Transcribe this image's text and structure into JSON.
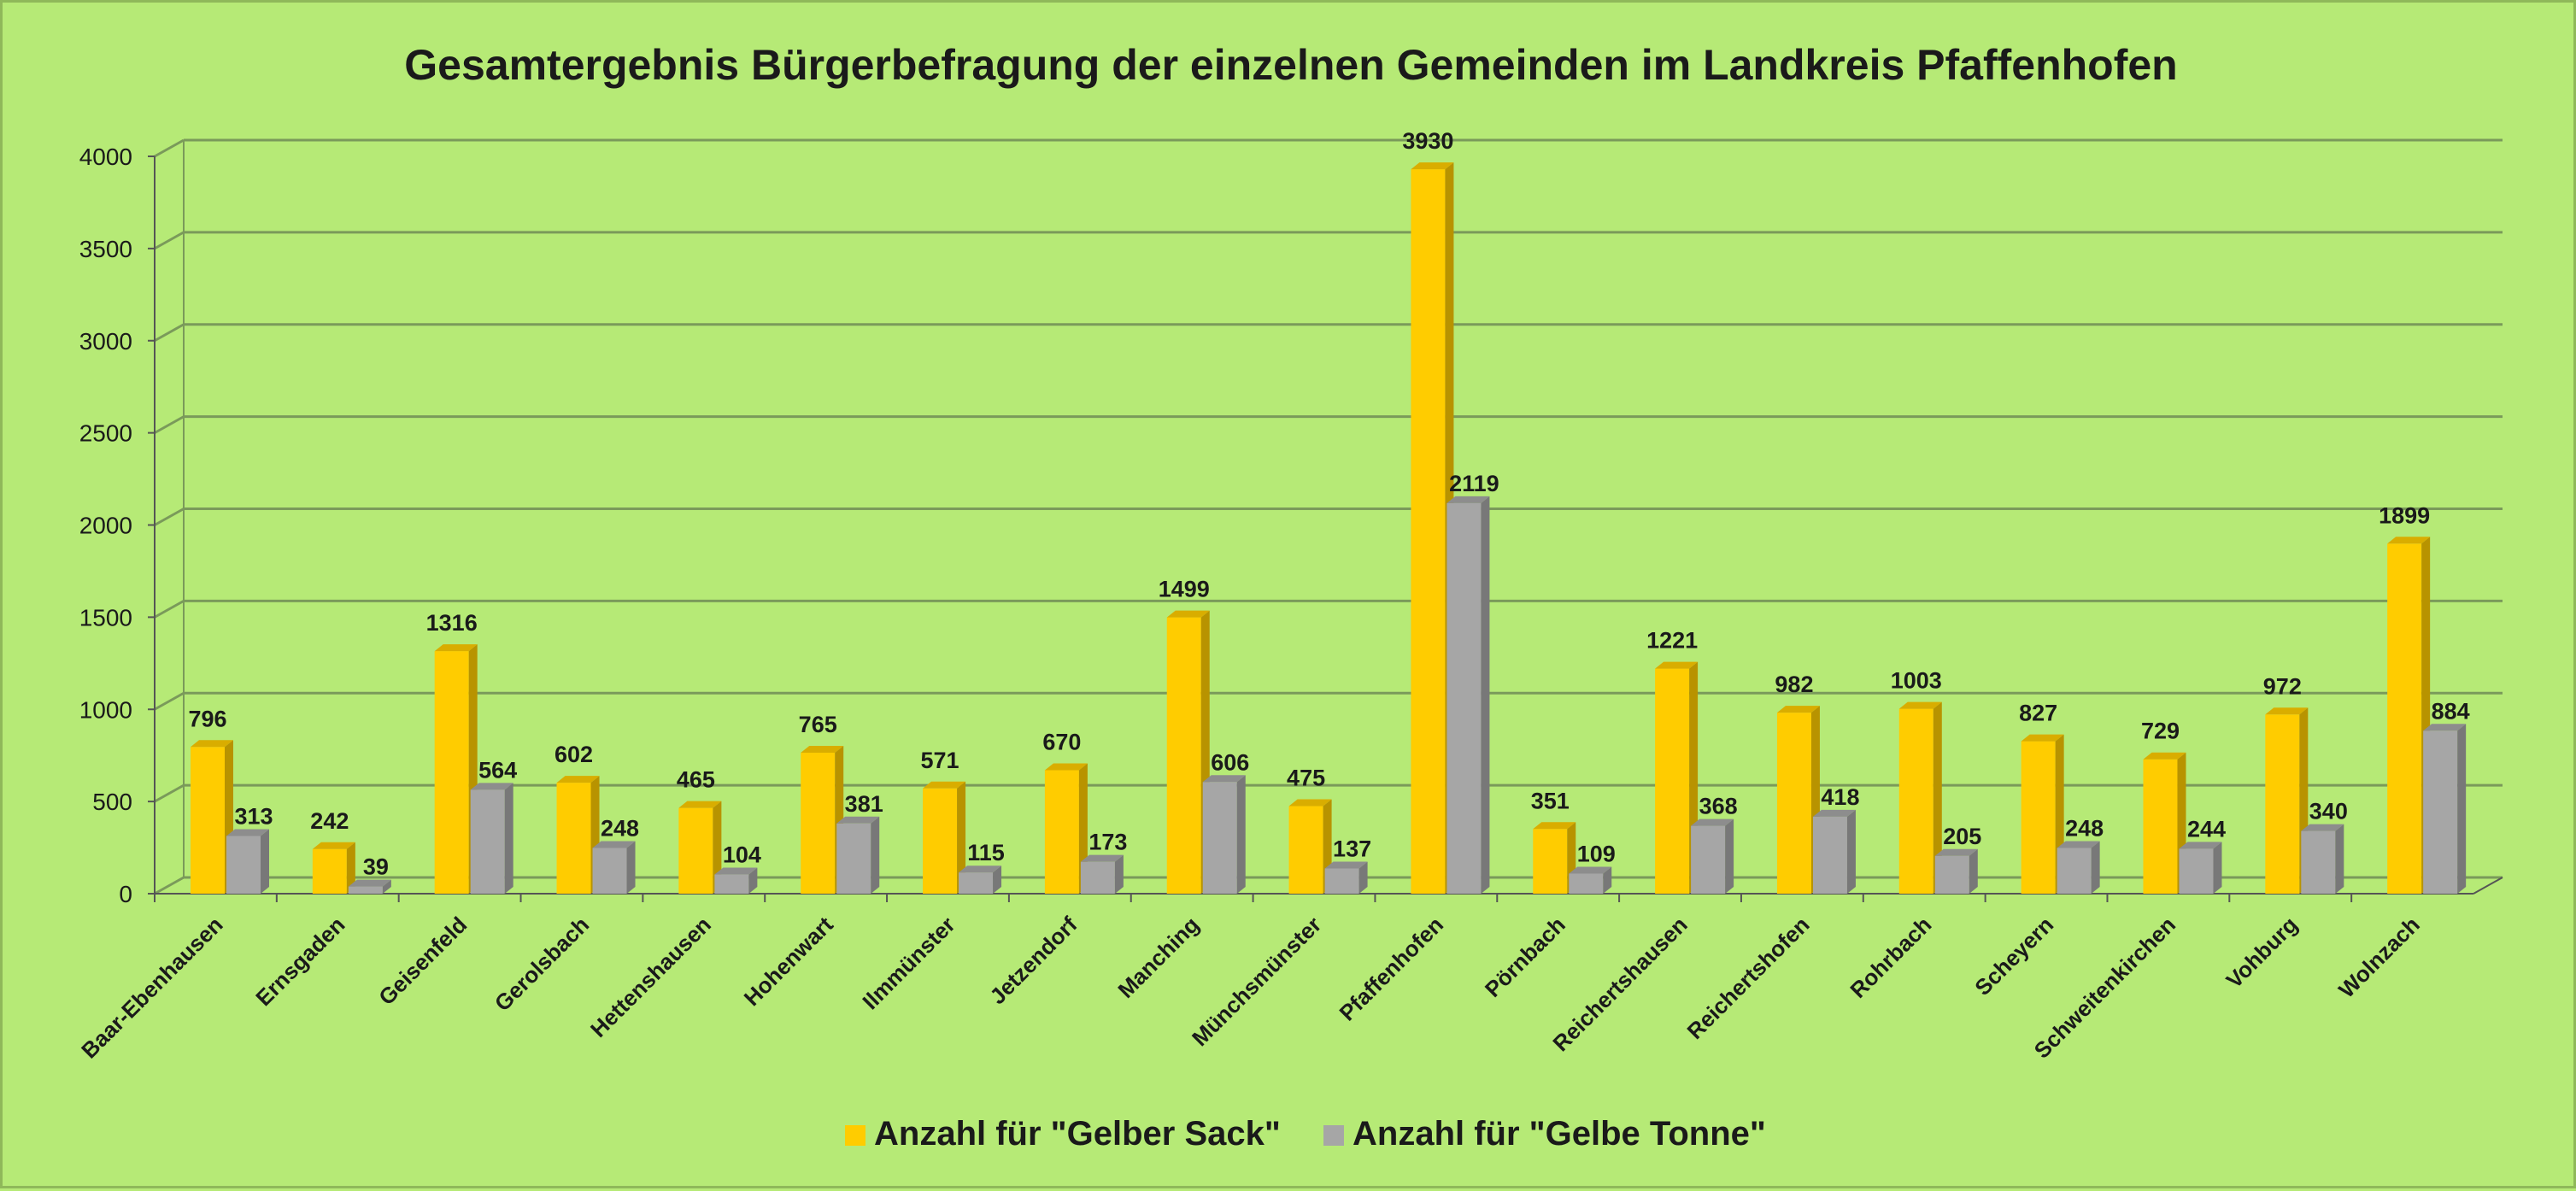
{
  "chart_data": {
    "type": "bar",
    "title": "Gesamtergebnis Bürgerbefragung  der einzelnen Gemeinden im Landkreis Pfaffenhofen",
    "xlabel": "",
    "ylabel": "",
    "ylim": [
      0,
      4000
    ],
    "yticks": [
      0,
      500,
      1000,
      1500,
      2000,
      2500,
      3000,
      3500,
      4000
    ],
    "grid": true,
    "legend_position": "bottom",
    "categories": [
      "Baar-Ebenhausen",
      "Ernsgaden",
      "Geisenfeld",
      "Gerolsbach",
      "Hettenshausen",
      "Hohenwart",
      "Ilmmünster",
      "Jetzendorf",
      "Manching",
      "Münchsmünster",
      "Pfaffenhofen",
      "Pörnbach",
      "Reichertshausen",
      "Reichertshofen",
      "Rohrbach",
      "Scheyern",
      "Schweitenkirchen",
      "Vohburg",
      "Wolnzach"
    ],
    "series": [
      {
        "name": "Anzahl für \"Gelber Sack\"",
        "color": "#ffcc00",
        "values": [
          796,
          242,
          1316,
          602,
          465,
          765,
          571,
          670,
          1499,
          475,
          3930,
          351,
          1221,
          982,
          1003,
          827,
          729,
          972,
          1899
        ]
      },
      {
        "name": "Anzahl für \"Gelbe Tonne\"",
        "color": "#a6a6a6",
        "values": [
          313,
          39,
          564,
          248,
          104,
          381,
          115,
          173,
          606,
          137,
          2119,
          109,
          368,
          418,
          205,
          248,
          244,
          340,
          884
        ]
      }
    ]
  }
}
